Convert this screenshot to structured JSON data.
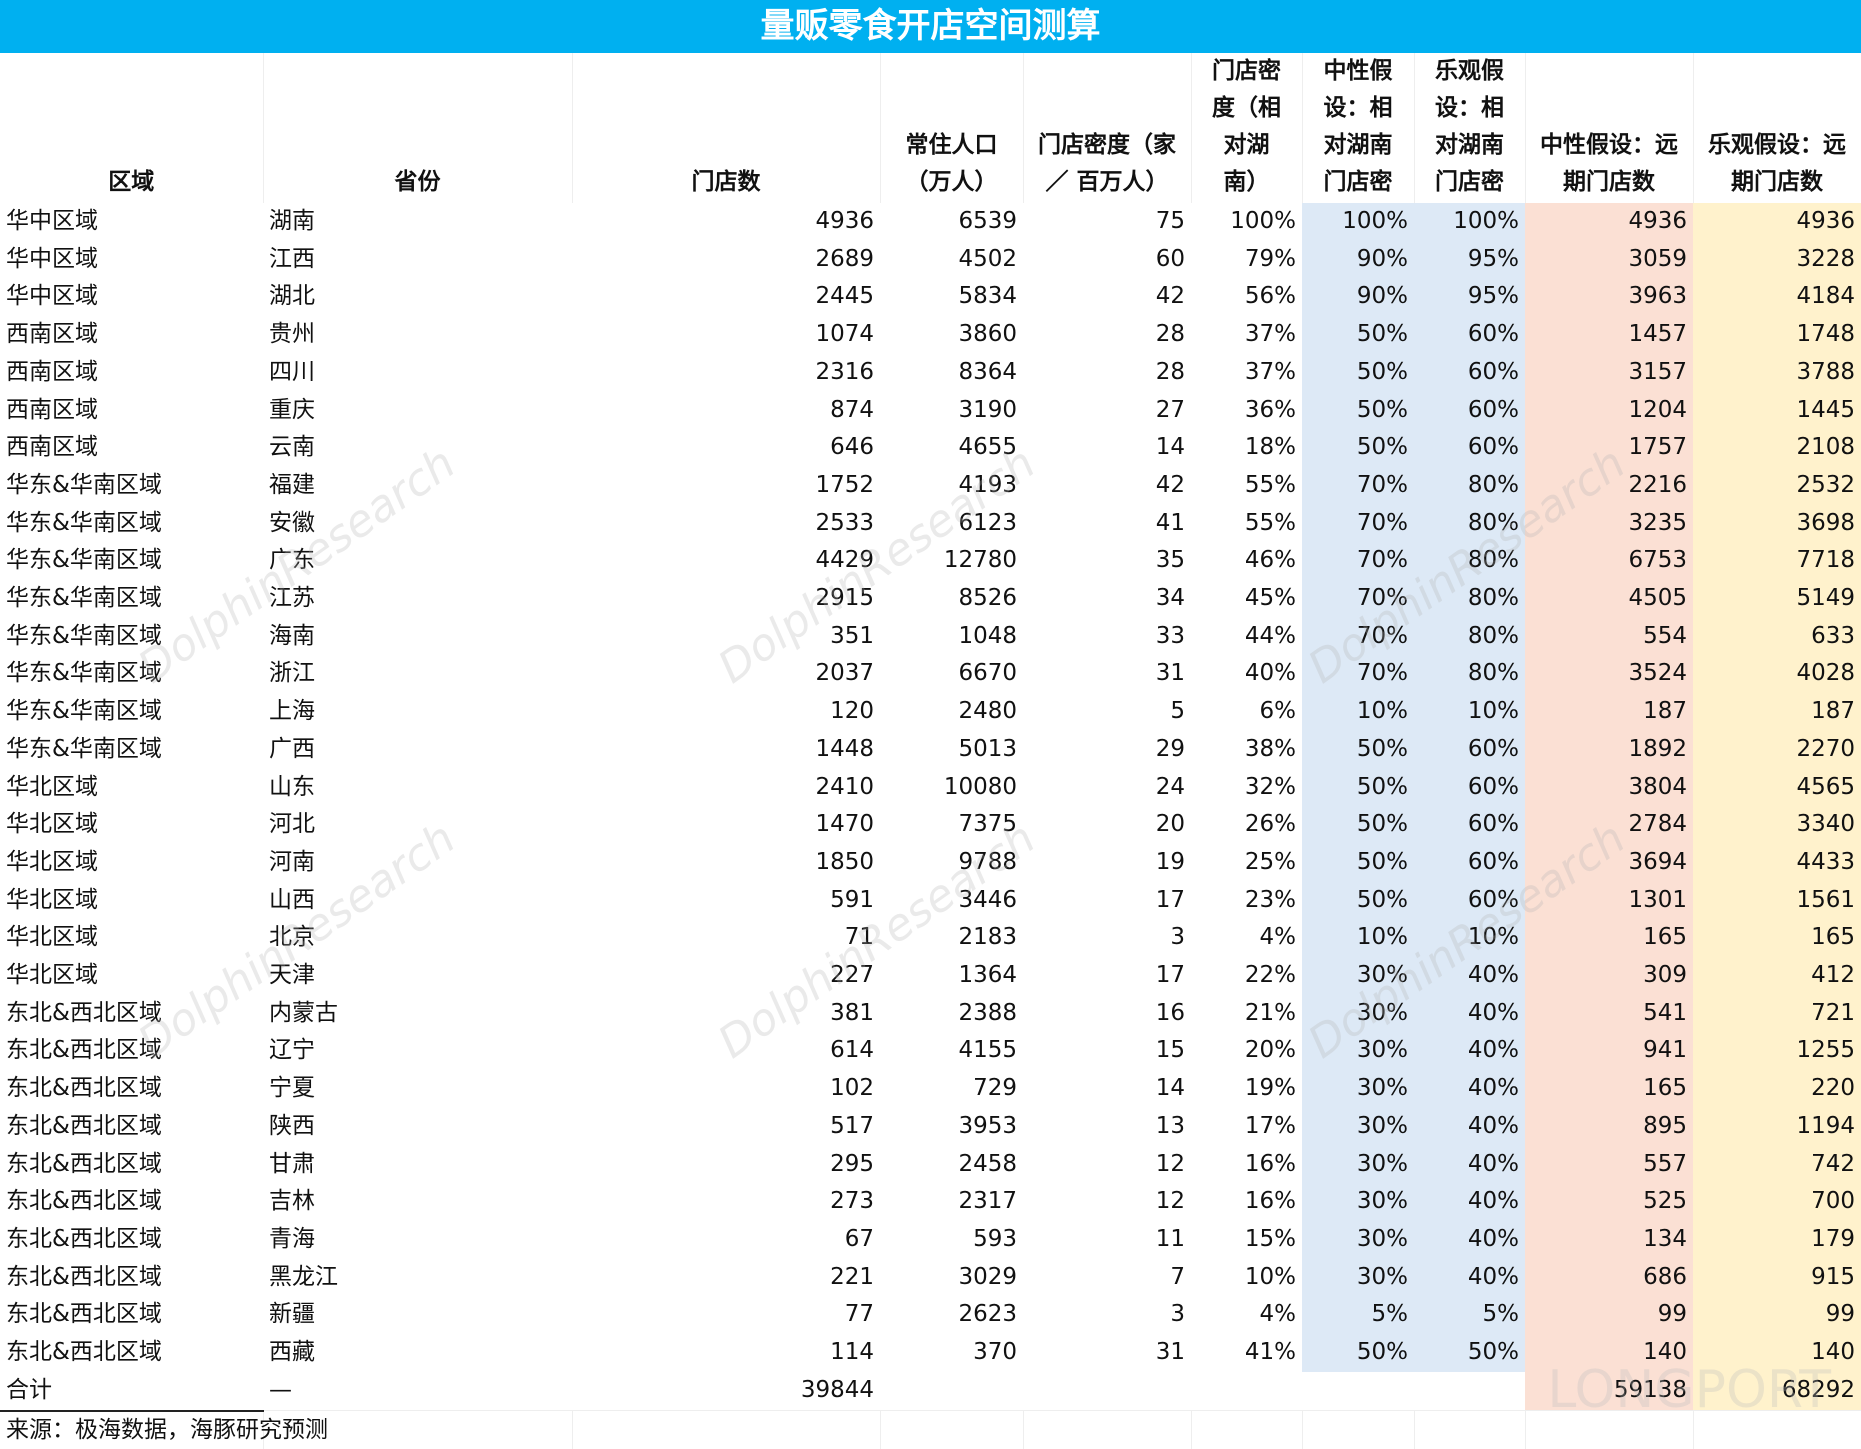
{
  "title": "量贩零食开店空间测算",
  "headers": [
    "区域",
    "省份",
    "门店数",
    "常住人口\n（万人）",
    "门店密度（家\n／ 百万人）",
    "门店密\n度（相\n对湖\n南）",
    "中性假\n设：相\n对湖南\n门店密",
    "乐观假\n设：相\n对湖南\n门店密",
    "中性假设：远\n期门店数",
    "乐观假设：远\n期门店数"
  ],
  "rows": [
    [
      "华中区域",
      "湖南",
      "4936",
      "6539",
      "75",
      "100%",
      "100%",
      "100%",
      "4936",
      "4936"
    ],
    [
      "华中区域",
      "江西",
      "2689",
      "4502",
      "60",
      "79%",
      "90%",
      "95%",
      "3059",
      "3228"
    ],
    [
      "华中区域",
      "湖北",
      "2445",
      "5834",
      "42",
      "56%",
      "90%",
      "95%",
      "3963",
      "4184"
    ],
    [
      "西南区域",
      "贵州",
      "1074",
      "3860",
      "28",
      "37%",
      "50%",
      "60%",
      "1457",
      "1748"
    ],
    [
      "西南区域",
      "四川",
      "2316",
      "8364",
      "28",
      "37%",
      "50%",
      "60%",
      "3157",
      "3788"
    ],
    [
      "西南区域",
      "重庆",
      "874",
      "3190",
      "27",
      "36%",
      "50%",
      "60%",
      "1204",
      "1445"
    ],
    [
      "西南区域",
      "云南",
      "646",
      "4655",
      "14",
      "18%",
      "50%",
      "60%",
      "1757",
      "2108"
    ],
    [
      "华东&华南区域",
      "福建",
      "1752",
      "4193",
      "42",
      "55%",
      "70%",
      "80%",
      "2216",
      "2532"
    ],
    [
      "华东&华南区域",
      "安徽",
      "2533",
      "6123",
      "41",
      "55%",
      "70%",
      "80%",
      "3235",
      "3698"
    ],
    [
      "华东&华南区域",
      "广东",
      "4429",
      "12780",
      "35",
      "46%",
      "70%",
      "80%",
      "6753",
      "7718"
    ],
    [
      "华东&华南区域",
      "江苏",
      "2915",
      "8526",
      "34",
      "45%",
      "70%",
      "80%",
      "4505",
      "5149"
    ],
    [
      "华东&华南区域",
      "海南",
      "351",
      "1048",
      "33",
      "44%",
      "70%",
      "80%",
      "554",
      "633"
    ],
    [
      "华东&华南区域",
      "浙江",
      "2037",
      "6670",
      "31",
      "40%",
      "70%",
      "80%",
      "3524",
      "4028"
    ],
    [
      "华东&华南区域",
      "上海",
      "120",
      "2480",
      "5",
      "6%",
      "10%",
      "10%",
      "187",
      "187"
    ],
    [
      "华东&华南区域",
      "广西",
      "1448",
      "5013",
      "29",
      "38%",
      "50%",
      "60%",
      "1892",
      "2270"
    ],
    [
      "华北区域",
      "山东",
      "2410",
      "10080",
      "24",
      "32%",
      "50%",
      "60%",
      "3804",
      "4565"
    ],
    [
      "华北区域",
      "河北",
      "1470",
      "7375",
      "20",
      "26%",
      "50%",
      "60%",
      "2784",
      "3340"
    ],
    [
      "华北区域",
      "河南",
      "1850",
      "9788",
      "19",
      "25%",
      "50%",
      "60%",
      "3694",
      "4433"
    ],
    [
      "华北区域",
      "山西",
      "591",
      "3446",
      "17",
      "23%",
      "50%",
      "60%",
      "1301",
      "1561"
    ],
    [
      "华北区域",
      "北京",
      "71",
      "2183",
      "3",
      "4%",
      "10%",
      "10%",
      "165",
      "165"
    ],
    [
      "华北区域",
      "天津",
      "227",
      "1364",
      "17",
      "22%",
      "30%",
      "40%",
      "309",
      "412"
    ],
    [
      "东北&西北区域",
      "内蒙古",
      "381",
      "2388",
      "16",
      "21%",
      "30%",
      "40%",
      "541",
      "721"
    ],
    [
      "东北&西北区域",
      "辽宁",
      "614",
      "4155",
      "15",
      "20%",
      "30%",
      "40%",
      "941",
      "1255"
    ],
    [
      "东北&西北区域",
      "宁夏",
      "102",
      "729",
      "14",
      "19%",
      "30%",
      "40%",
      "165",
      "220"
    ],
    [
      "东北&西北区域",
      "陕西",
      "517",
      "3953",
      "13",
      "17%",
      "30%",
      "40%",
      "895",
      "1194"
    ],
    [
      "东北&西北区域",
      "甘肃",
      "295",
      "2458",
      "12",
      "16%",
      "30%",
      "40%",
      "557",
      "742"
    ],
    [
      "东北&西北区域",
      "吉林",
      "273",
      "2317",
      "12",
      "16%",
      "30%",
      "40%",
      "525",
      "700"
    ],
    [
      "东北&西北区域",
      "青海",
      "67",
      "593",
      "11",
      "15%",
      "30%",
      "40%",
      "134",
      "179"
    ],
    [
      "东北&西北区域",
      "黑龙江",
      "221",
      "3029",
      "7",
      "10%",
      "30%",
      "40%",
      "686",
      "915"
    ],
    [
      "东北&西北区域",
      "新疆",
      "77",
      "2623",
      "3",
      "4%",
      "5%",
      "5%",
      "99",
      "99"
    ],
    [
      "东北&西北区域",
      "西藏",
      "114",
      "370",
      "31",
      "41%",
      "50%",
      "50%",
      "140",
      "140"
    ]
  ],
  "total": [
    "合计",
    "—",
    "39844",
    "",
    "",
    "",
    "",
    "",
    "59138",
    "68292"
  ],
  "source": "来源：极海数据，海豚研究预测",
  "watermark": "DolphinResearch",
  "logo_watermark": "LONGPORT",
  "colors": {
    "title_bg": "#00b0f0",
    "neutral_assumption_bg": "#dde9f6",
    "neutral_forecast_bg": "#fbe0d4",
    "optimistic_forecast_bg": "#fff2cc"
  }
}
